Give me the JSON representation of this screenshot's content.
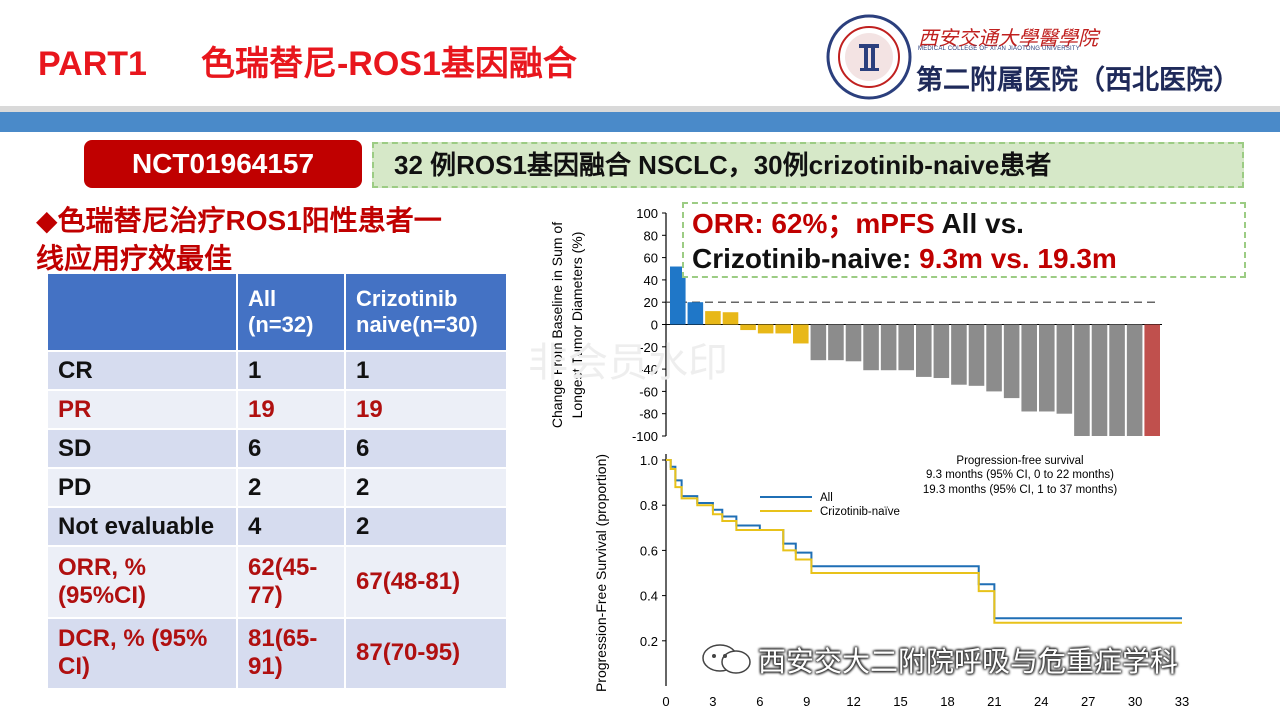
{
  "header": {
    "part": "PART1",
    "title": "色瑞替尼-ROS1基因融合",
    "hospital_sub": "西安交通大學醫學院",
    "hospital_sub_en": "MEDICAL COLLEGE OF XI'AN JIAOTONG UNIVERSITY",
    "hospital_name": "第二附属医院（西北医院）"
  },
  "trial": {
    "id": "NCT01964157",
    "summary": "32 例ROS1基因融合 NSCLC，30例crizotinib-naive患者"
  },
  "bullet": "◆色瑞替尼治疗ROS1阳性患者一线应用疗效最佳",
  "table": {
    "headers": [
      "",
      "All (n=32)",
      "Crizotinib naive(n=30)"
    ],
    "rows": [
      {
        "label": "CR",
        "all": "1",
        "naive": "1",
        "red": false
      },
      {
        "label": "PR",
        "all": "19",
        "naive": "19",
        "red": true
      },
      {
        "label": "SD",
        "all": "6",
        "naive": "6",
        "red": false
      },
      {
        "label": "PD",
        "all": "2",
        "naive": "2",
        "red": false
      },
      {
        "label": "Not evaluable",
        "all": "4",
        "naive": "2",
        "red": false
      },
      {
        "label": "ORR, % (95%CI)",
        "all": "62(45-77)",
        "naive": "67(48-81)",
        "red": true
      },
      {
        "label": "DCR, % (95% CI)",
        "all": "81(65-91)",
        "naive": "87(70-95)",
        "red": true
      }
    ]
  },
  "orr_box": {
    "line1_red": "ORR: 62%；mPFS",
    "line1_black": " All vs.",
    "line2_black": "Crizotinib-naive: ",
    "line2_red": "9.3m vs. 19.3m"
  },
  "watermark": "非会员水印",
  "wechat": "西安交大二附院呼吸与危重症学科",
  "chart_data": [
    {
      "type": "bar",
      "ylabel": "Change From Baseline in Sum of Longest Tumor Diameters (%)",
      "ylim": [
        -100,
        100
      ],
      "yticks": [
        100,
        80,
        60,
        40,
        20,
        0,
        -20,
        -40,
        -60,
        -80,
        -100
      ],
      "reference_line": 20,
      "values": [
        52,
        20,
        12,
        11,
        -5,
        -8,
        -8,
        -17,
        -32,
        -32,
        -33,
        -41,
        -41,
        -41,
        -47,
        -48,
        -54,
        -55,
        -60,
        -66,
        -78,
        -78,
        -80,
        -100,
        -100,
        -100,
        -100,
        -100
      ],
      "colors": [
        "#1f77c8",
        "#1f77c8",
        "#e8b818",
        "#e8b818",
        "#e8b818",
        "#e8b818",
        "#e8b818",
        "#e8b818",
        "#8c8c8c",
        "#8c8c8c",
        "#8c8c8c",
        "#8c8c8c",
        "#8c8c8c",
        "#8c8c8c",
        "#8c8c8c",
        "#8c8c8c",
        "#8c8c8c",
        "#8c8c8c",
        "#8c8c8c",
        "#8c8c8c",
        "#8c8c8c",
        "#8c8c8c",
        "#8c8c8c",
        "#8c8c8c",
        "#8c8c8c",
        "#8c8c8c",
        "#8c8c8c",
        "#c0504d"
      ]
    },
    {
      "type": "line",
      "title": "Progression-free survival",
      "notes": [
        "9.3 months (95% CI, 0 to 22 months)",
        "19.3 months (95% CI, 1 to 37 months)"
      ],
      "ylabel": "Progression-Free Survival (proportion)",
      "xlim": [
        0,
        33
      ],
      "ylim": [
        0,
        1.0
      ],
      "xticks": [
        0,
        3,
        6,
        9,
        12,
        15,
        18,
        21,
        24,
        27,
        30,
        33
      ],
      "yticks": [
        0.2,
        0.4,
        0.6,
        0.8,
        1.0
      ],
      "legend": "top-right",
      "series": [
        {
          "name": "All",
          "color": "#1f6fb5",
          "x": [
            0,
            0.3,
            0.6,
            1,
            2,
            3,
            3.6,
            4.5,
            6,
            7.5,
            8.3,
            9.3,
            20,
            21,
            33
          ],
          "y": [
            1.0,
            0.97,
            0.91,
            0.84,
            0.81,
            0.78,
            0.75,
            0.71,
            0.69,
            0.63,
            0.59,
            0.53,
            0.45,
            0.3,
            0.3
          ]
        },
        {
          "name": "Crizotinib-naïve",
          "color": "#e8c21a",
          "x": [
            0,
            0.3,
            0.6,
            1,
            2,
            3,
            3.6,
            4.5,
            6,
            7.5,
            8.3,
            9.3,
            20,
            21,
            33
          ],
          "y": [
            1.0,
            0.96,
            0.88,
            0.83,
            0.8,
            0.76,
            0.73,
            0.69,
            0.69,
            0.6,
            0.56,
            0.5,
            0.42,
            0.28,
            0.28
          ]
        }
      ]
    }
  ]
}
